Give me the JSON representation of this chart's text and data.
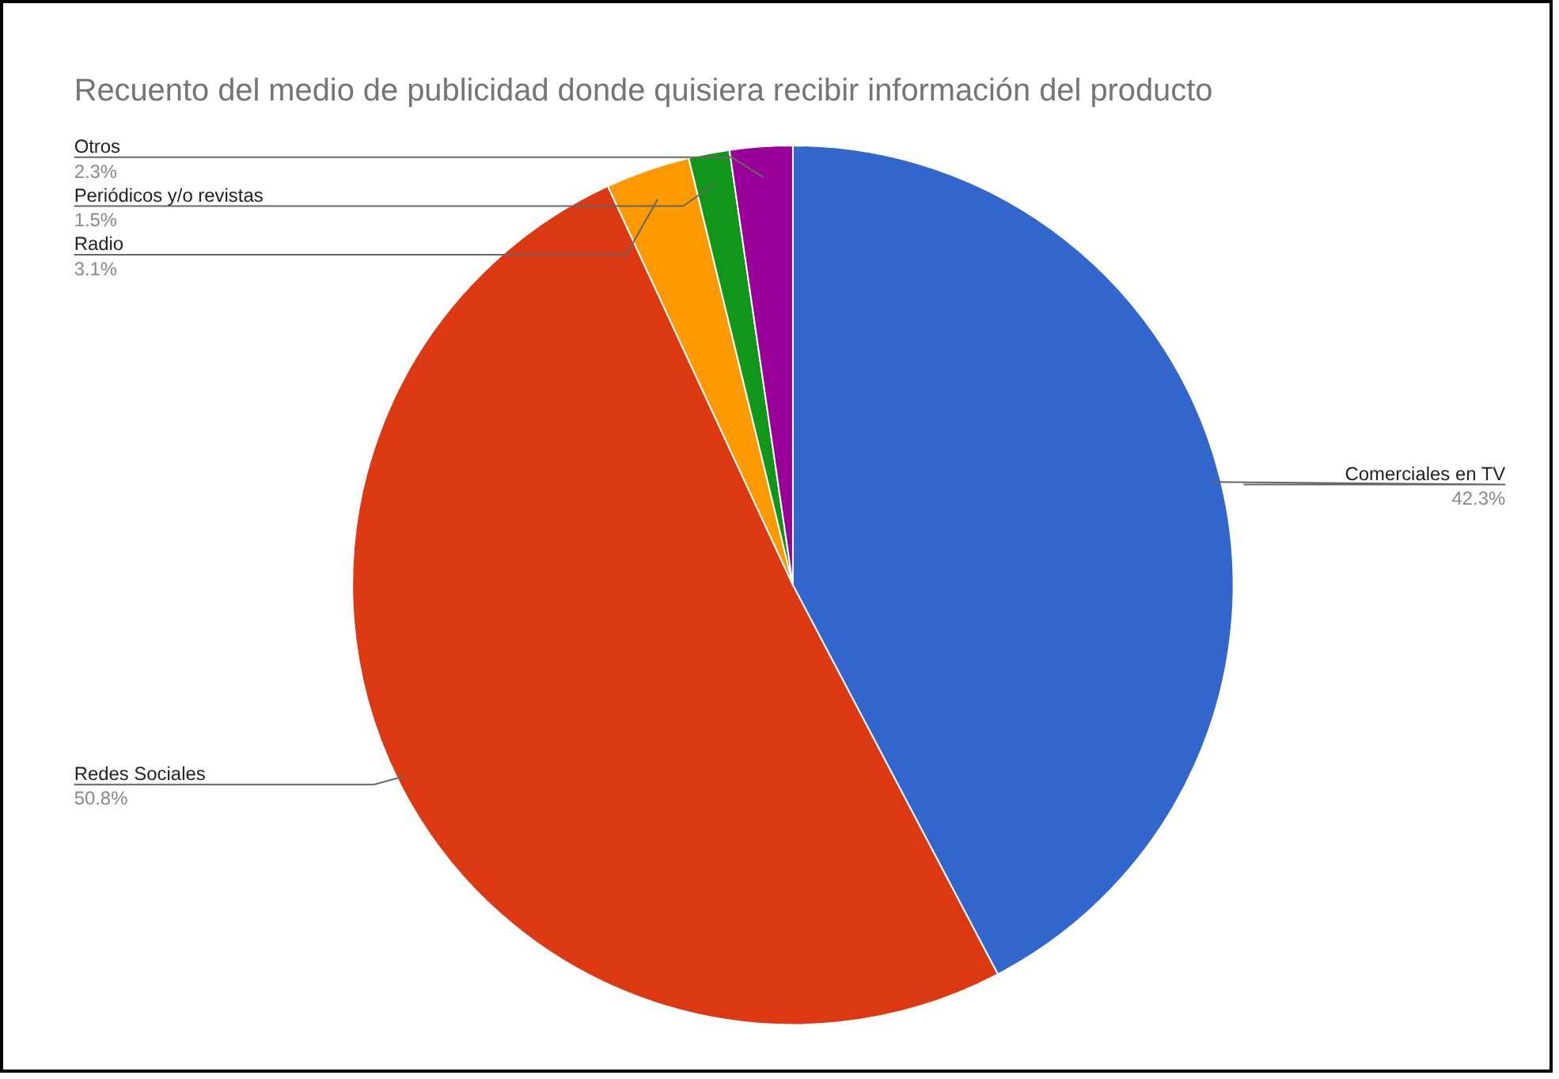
{
  "chart_data": {
    "type": "pie",
    "title": "Recuento del medio de publicidad donde quisiera recibir información del producto",
    "categories": [
      "Comerciales en TV",
      "Redes Sociales",
      "Radio",
      "Periódicos y/o revistas",
      "Otros"
    ],
    "values": [
      42.3,
      50.8,
      3.1,
      1.5,
      2.3
    ],
    "colors": [
      "#3366cc",
      "#dc3912",
      "#ff9900",
      "#109618",
      "#990099"
    ],
    "value_labels": [
      "42.3%",
      "50.8%",
      "3.1%",
      "1.5%",
      "2.3%"
    ],
    "legend": false
  }
}
